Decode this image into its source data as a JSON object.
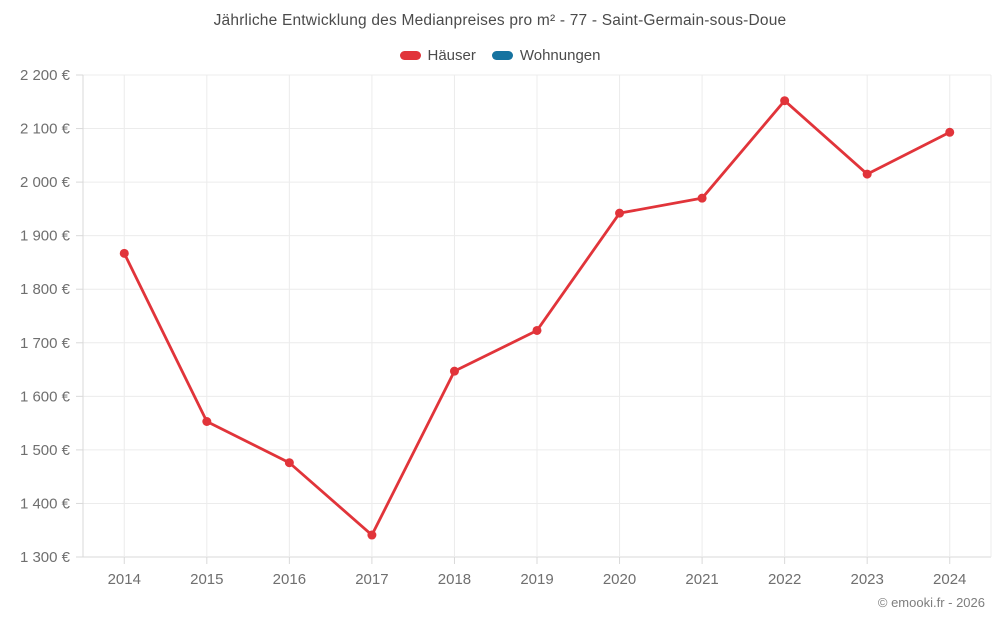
{
  "title": "Jährliche Entwicklung des Medianpreises pro m² - 77 - Saint-Germain-sous-Doue",
  "legend": [
    {
      "label": "Häuser",
      "color": "#e1343a"
    },
    {
      "label": "Wohnungen",
      "color": "#1673a0"
    }
  ],
  "copyright": "© emooki.fr - 2026",
  "colors": {
    "grid": "#ececec",
    "axis": "#d9d9d9",
    "tick_label": "#6f6f6f"
  },
  "chart_data": {
    "type": "line",
    "categories": [
      "2014",
      "2015",
      "2016",
      "2017",
      "2018",
      "2019",
      "2020",
      "2021",
      "2022",
      "2023",
      "2024"
    ],
    "series": [
      {
        "name": "Häuser",
        "color": "#e1343a",
        "values": [
          1867,
          1553,
          1476,
          1341,
          1647,
          1723,
          1942,
          1970,
          2152,
          2015,
          2093
        ]
      },
      {
        "name": "Wohnungen",
        "color": "#1673a0",
        "values": []
      }
    ],
    "title": "Jährliche Entwicklung des Medianpreises pro m² - 77 - Saint-Germain-sous-Doue",
    "xlabel": "",
    "ylabel": "",
    "ylim": [
      1300,
      2200
    ],
    "ytick_step": 100,
    "ytick_labels": [
      "1 300 €",
      "1 400 €",
      "1 500 €",
      "1 600 €",
      "1 700 €",
      "1 800 €",
      "1 900 €",
      "2 000 €",
      "2 100 €",
      "2 200 €"
    ],
    "grid": true,
    "legend_position": "top"
  }
}
